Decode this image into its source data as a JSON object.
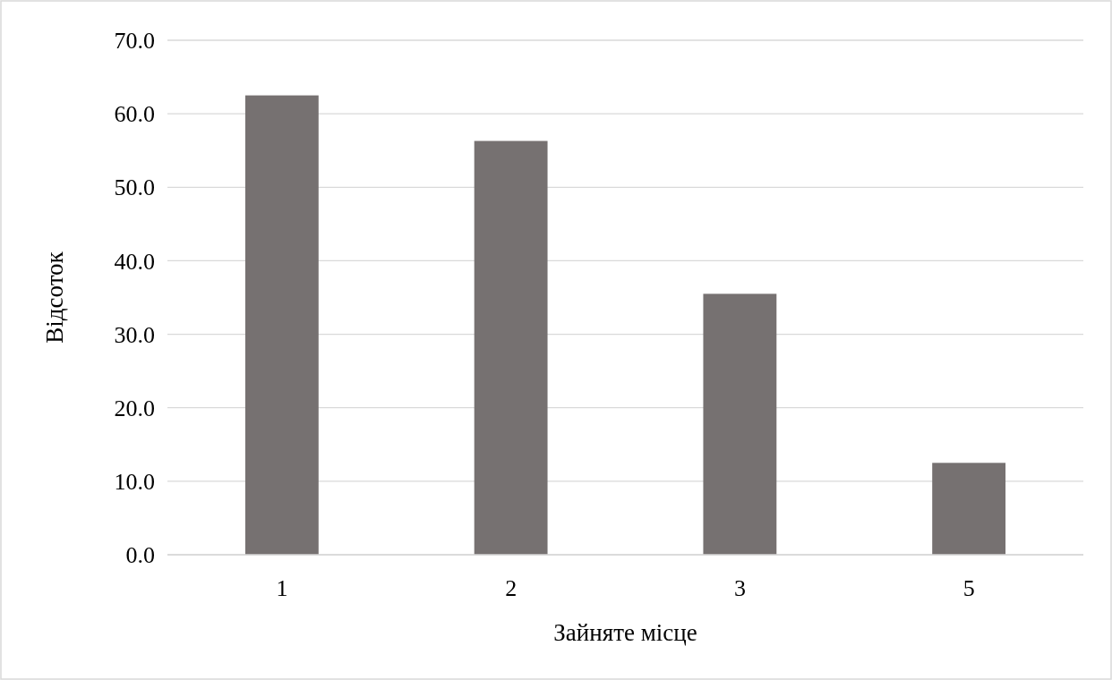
{
  "chart_data": {
    "type": "bar",
    "xlabel": "Зайняте місце",
    "ylabel": "Відсоток",
    "categories": [
      "1",
      "2",
      "3",
      "5"
    ],
    "values": [
      62.5,
      56.3,
      35.5,
      12.5
    ],
    "color": "#767171",
    "ylim": [
      0,
      70
    ],
    "yticks": [
      {
        "value": 0,
        "label": "0.0"
      },
      {
        "value": 10,
        "label": "10.0"
      },
      {
        "value": 20,
        "label": "20.0"
      },
      {
        "value": 30,
        "label": "30.0"
      },
      {
        "value": 40,
        "label": "40.0"
      },
      {
        "value": 50,
        "label": "50.0"
      },
      {
        "value": 60,
        "label": "60.0"
      },
      {
        "value": 70,
        "label": "70.0"
      }
    ],
    "grid": "y"
  }
}
